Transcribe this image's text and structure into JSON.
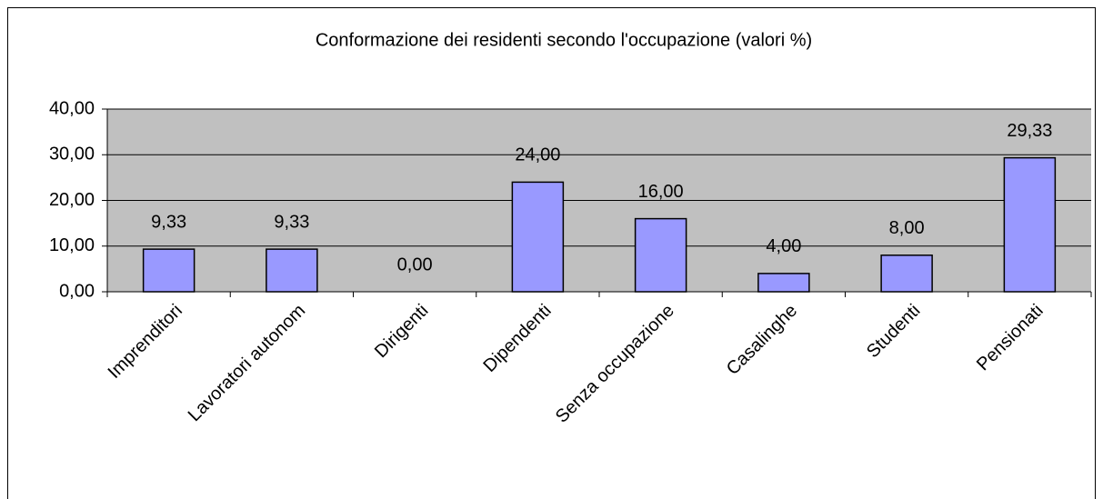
{
  "chart_data": {
    "type": "bar",
    "title": "Conformazione dei residenti secondo l'occupazione (valori %)",
    "categories": [
      "Imprenditori",
      "Lavoratori autonom",
      "Dirigenti",
      "Dipendenti",
      "Senza occupazione",
      "Casalinghe",
      "Studenti",
      "Pensionati"
    ],
    "values": [
      9.33,
      9.33,
      0,
      24,
      16,
      4,
      8,
      29.33
    ],
    "value_labels": [
      "9,33",
      "9,33",
      "0,00",
      "24,00",
      "16,00",
      "4,00",
      "8,00",
      "29,33"
    ],
    "color": "#9999ff",
    "ylim": [
      0,
      40
    ],
    "yticks": [
      {
        "value": 0,
        "label": "0,00"
      },
      {
        "value": 10,
        "label": "10,00"
      },
      {
        "value": 20,
        "label": "20,00"
      },
      {
        "value": 30,
        "label": "30,00"
      },
      {
        "value": 40,
        "label": "40,00"
      }
    ],
    "grid": true
  }
}
